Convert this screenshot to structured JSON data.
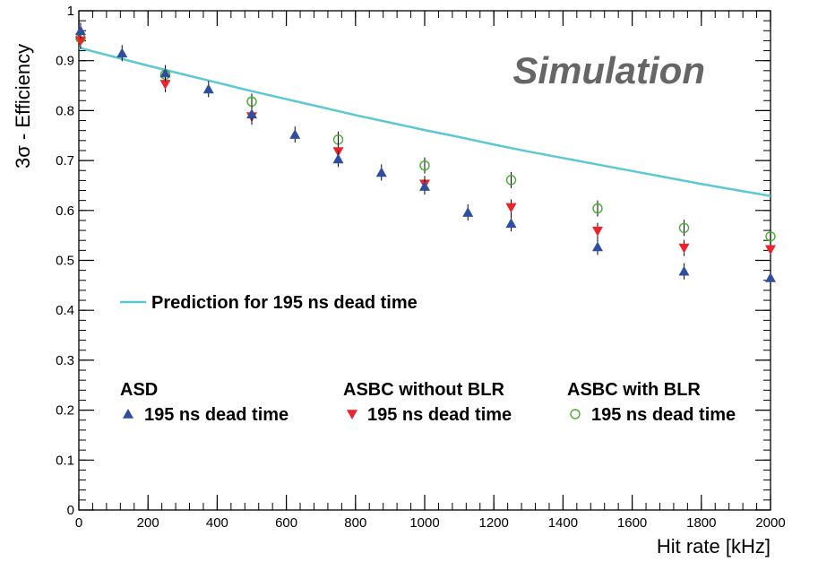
{
  "chart_data": {
    "type": "scatter",
    "title": "",
    "annotation": "Simulation",
    "xlabel": "Hit rate [kHz]",
    "ylabel": "3σ - Efficiency",
    "xlim": [
      0,
      2000
    ],
    "ylim": [
      0,
      1
    ],
    "xticks": [
      0,
      200,
      400,
      600,
      800,
      1000,
      1200,
      1400,
      1600,
      1800,
      2000
    ],
    "yticks": [
      0,
      0.1,
      0.2,
      0.3,
      0.4,
      0.5,
      0.6,
      0.7,
      0.8,
      0.9,
      1
    ],
    "xtick_labels": [
      "0",
      "200",
      "400",
      "600",
      "800",
      "1000",
      "1200",
      "1400",
      "1600",
      "1800",
      "2000"
    ],
    "ytick_labels": [
      "0",
      "0.1",
      "0.2",
      "0.3",
      "0.4",
      "0.5",
      "0.6",
      "0.7",
      "0.8",
      "0.9",
      "1"
    ],
    "curve": {
      "name": "Prediction for 195 ns dead time",
      "color": "#5bc8d4",
      "x": [
        0,
        100,
        200,
        300,
        400,
        500,
        600,
        700,
        800,
        900,
        1000,
        1100,
        1200,
        1300,
        1400,
        1500,
        1600,
        1700,
        1800,
        1900,
        2000
      ],
      "y": [
        0.926,
        0.908,
        0.89,
        0.873,
        0.856,
        0.839,
        0.823,
        0.807,
        0.791,
        0.776,
        0.761,
        0.747,
        0.732,
        0.718,
        0.705,
        0.692,
        0.679,
        0.666,
        0.653,
        0.641,
        0.629
      ]
    },
    "series": [
      {
        "name": "195 ns dead time",
        "group": "ASD",
        "marker": "triangle-up",
        "color": "#2f4f9e",
        "x": [
          5,
          125,
          250,
          375,
          500,
          625,
          750,
          875,
          1000,
          1125,
          1250,
          1500,
          1750,
          2000
        ],
        "y": [
          0.96,
          0.915,
          0.875,
          0.843,
          0.793,
          0.752,
          0.703,
          0.676,
          0.648,
          0.596,
          0.574,
          0.527,
          0.478,
          0.465
        ]
      },
      {
        "name": "195 ns dead time",
        "group": "ASBC without BLR",
        "marker": "triangle-down",
        "color": "#e8242c",
        "x": [
          5,
          250,
          500,
          750,
          1000,
          1250,
          1500,
          1750,
          2000
        ],
        "y": [
          0.94,
          0.853,
          0.788,
          0.718,
          0.653,
          0.606,
          0.559,
          0.525,
          0.522
        ]
      },
      {
        "name": "195 ns dead time",
        "group": "ASBC with BLR",
        "marker": "circle-open",
        "color": "#44b02e",
        "x": [
          5,
          250,
          500,
          750,
          1000,
          1250,
          1500,
          1750,
          2000
        ],
        "y": [
          0.945,
          0.872,
          0.818,
          0.742,
          0.69,
          0.661,
          0.604,
          0.565,
          0.548
        ]
      }
    ]
  }
}
